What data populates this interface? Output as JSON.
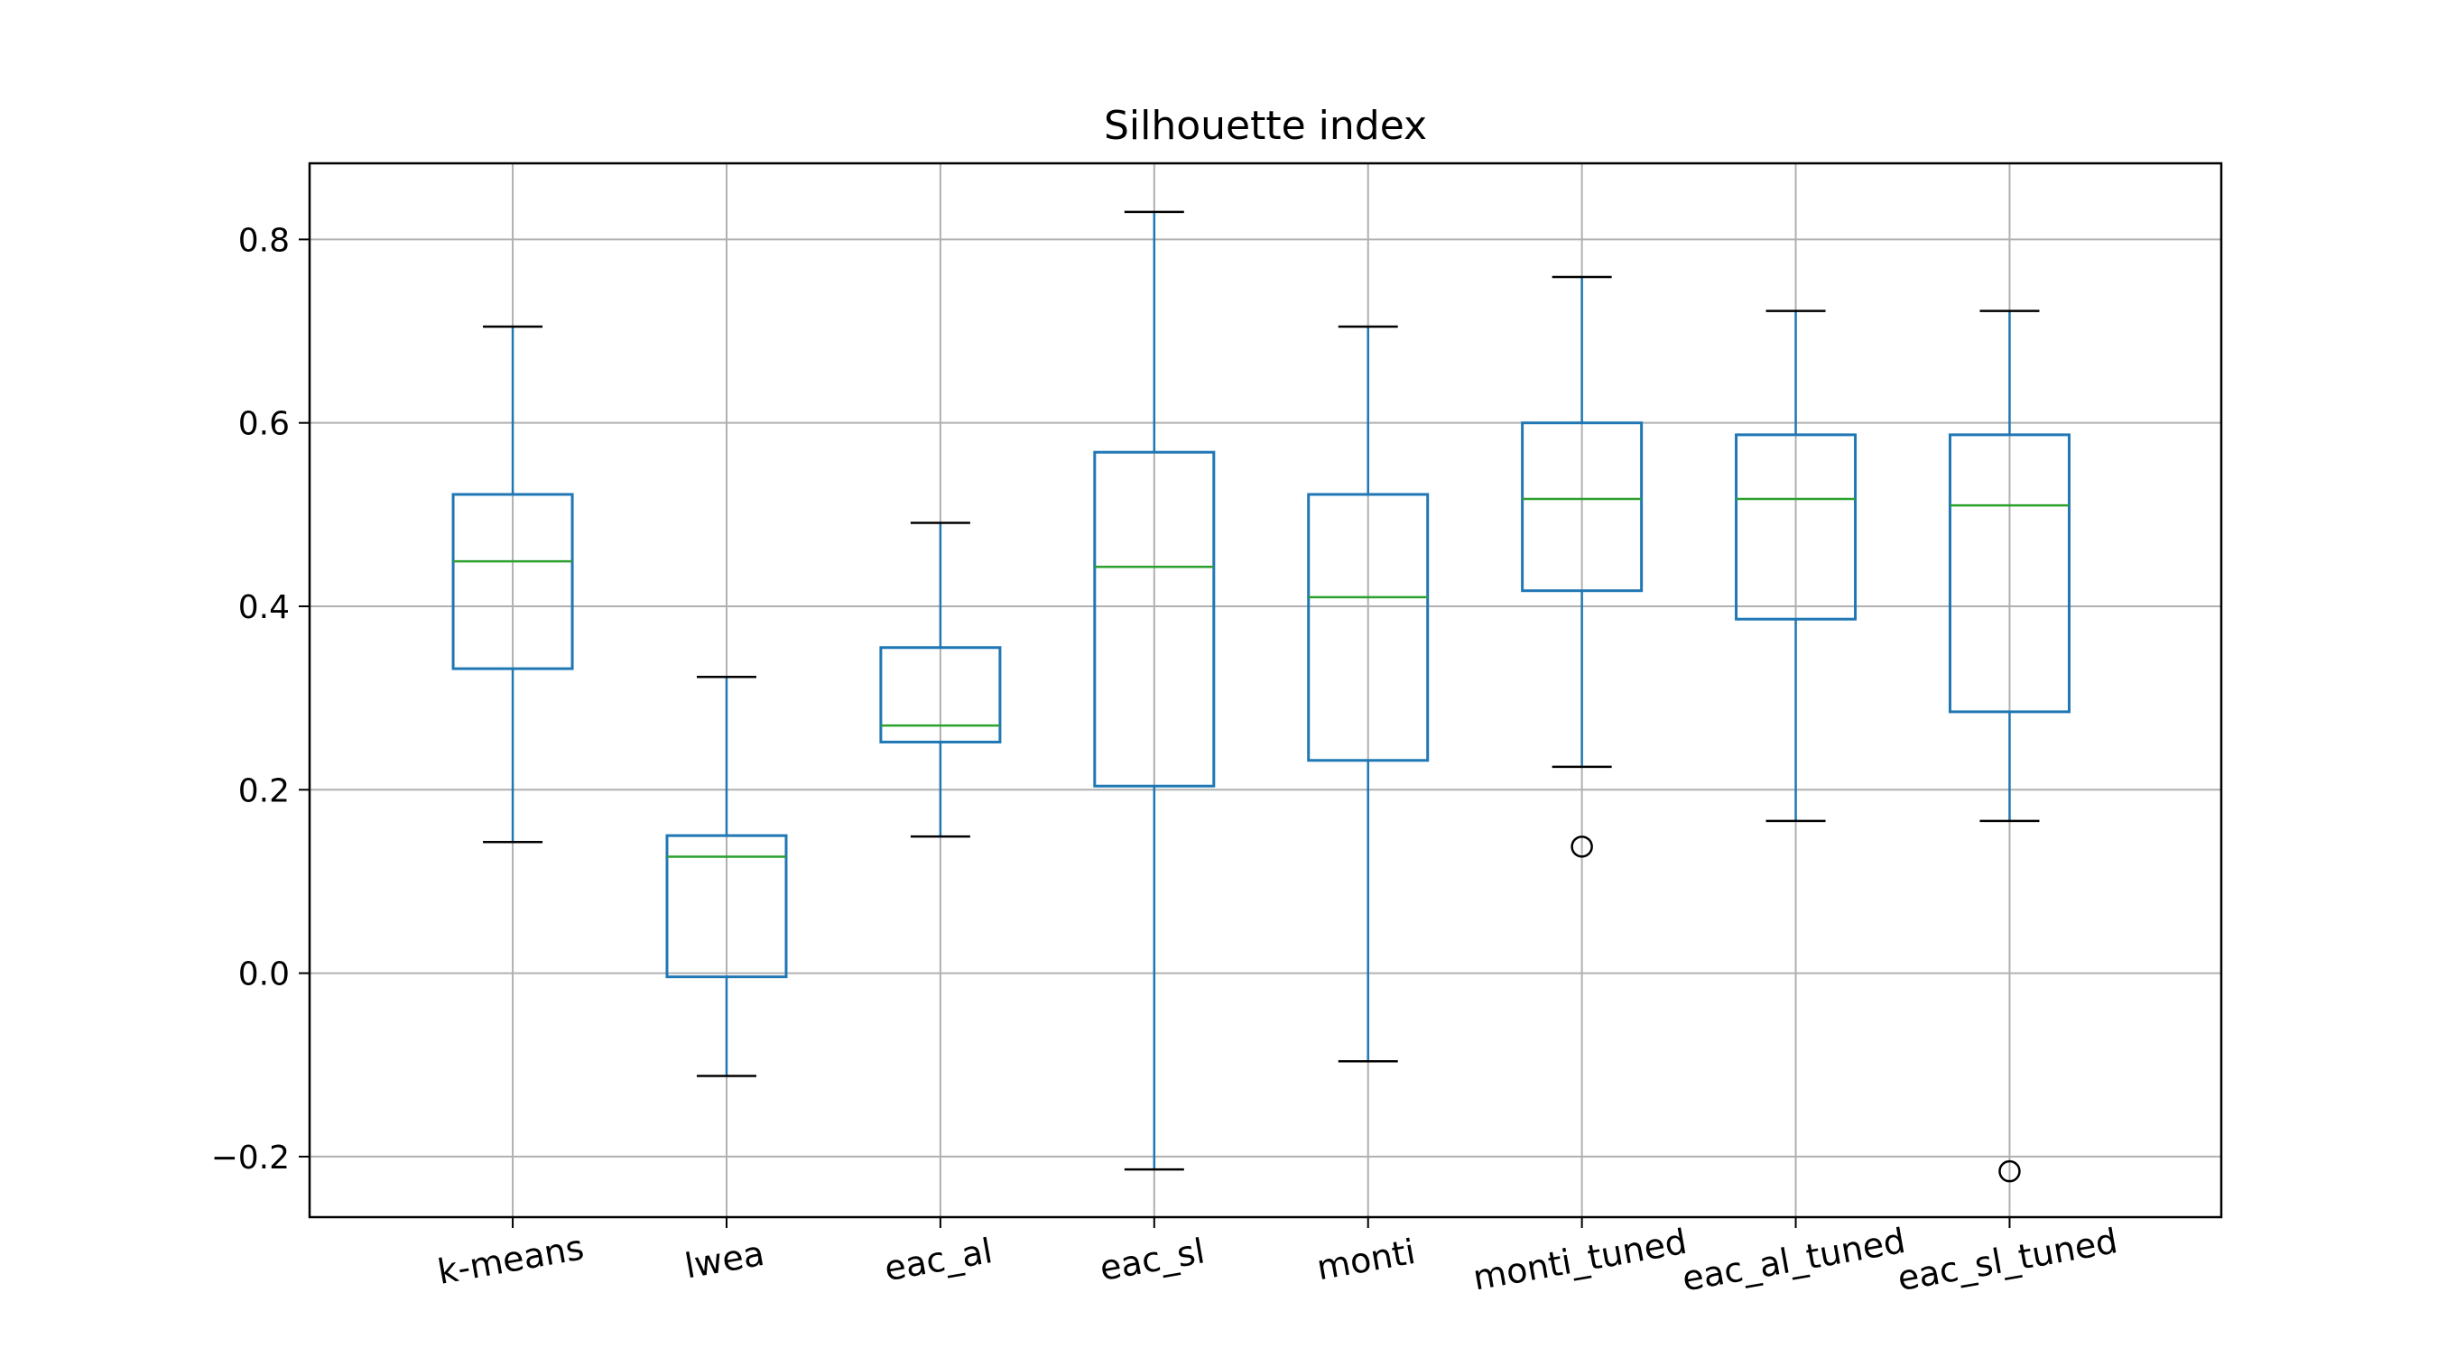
{
  "chart_data": {
    "type": "box",
    "title": "Silhouette index",
    "xlabel": "",
    "ylabel": "",
    "ylim": [
      -0.266,
      0.883
    ],
    "grid": true,
    "yticks": [
      -0.2,
      0.0,
      0.2,
      0.4,
      0.6,
      0.8
    ],
    "ytick_labels": [
      "−0.2",
      "0.0",
      "0.2",
      "0.4",
      "0.6",
      "0.8"
    ],
    "categories": [
      "k-means",
      "lwea",
      "eac_al",
      "eac_sl",
      "monti",
      "monti_tuned",
      "eac_al_tuned",
      "eac_sl_tuned"
    ],
    "boxes": [
      {
        "label": "k-means",
        "whisker_low": 0.143,
        "q1": 0.332,
        "median": 0.449,
        "q3": 0.522,
        "whisker_high": 0.705,
        "outliers": []
      },
      {
        "label": "lwea",
        "whisker_low": -0.112,
        "q1": -0.004,
        "median": 0.127,
        "q3": 0.15,
        "whisker_high": 0.323,
        "outliers": []
      },
      {
        "label": "eac_al",
        "whisker_low": 0.149,
        "q1": 0.252,
        "median": 0.27,
        "q3": 0.355,
        "whisker_high": 0.491,
        "outliers": []
      },
      {
        "label": "eac_sl",
        "whisker_low": -0.214,
        "q1": 0.204,
        "median": 0.443,
        "q3": 0.568,
        "whisker_high": 0.83,
        "outliers": []
      },
      {
        "label": "monti",
        "whisker_low": -0.096,
        "q1": 0.232,
        "median": 0.41,
        "q3": 0.522,
        "whisker_high": 0.705,
        "outliers": []
      },
      {
        "label": "monti_tuned",
        "whisker_low": 0.225,
        "q1": 0.417,
        "median": 0.517,
        "q3": 0.6,
        "whisker_high": 0.759,
        "outliers": [
          0.138
        ]
      },
      {
        "label": "eac_al_tuned",
        "whisker_low": 0.166,
        "q1": 0.386,
        "median": 0.517,
        "q3": 0.587,
        "whisker_high": 0.722,
        "outliers": []
      },
      {
        "label": "eac_sl_tuned",
        "whisker_low": 0.166,
        "q1": 0.285,
        "median": 0.51,
        "q3": 0.587,
        "whisker_high": 0.722,
        "outliers": [
          -0.216
        ]
      }
    ],
    "colors": {
      "box": "#1f77b4",
      "median": "#2ca02c",
      "whisker_cap": "#000000",
      "grid": "#b0b0b0",
      "outlier": "#000000"
    }
  }
}
